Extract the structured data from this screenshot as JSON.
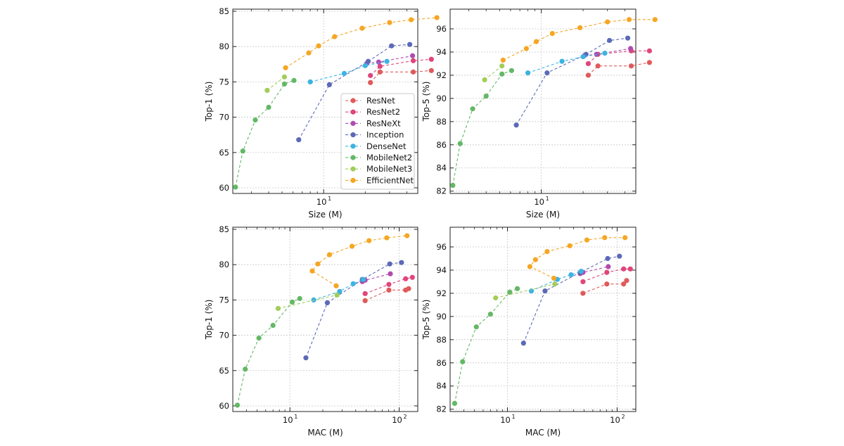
{
  "figure": {
    "legend_entries": [
      "ResNet",
      "ResNet2",
      "ResNeXt",
      "Inception",
      "DenseNet",
      "MobileNet2",
      "MobileNet3",
      "EfficientNet"
    ],
    "colors": {
      "ResNet": "#e05a5a",
      "ResNet2": "#e0457c",
      "ResNeXt": "#b04bb0",
      "Inception": "#5c69b8",
      "DenseNet": "#3cb3e2",
      "MobileNet2": "#63b866",
      "MobileNet3": "#a2cd5a",
      "EfficientNet": "#f5a623"
    }
  },
  "chart_data": [
    {
      "type": "line",
      "xlabel": "Size (M)",
      "ylabel": "Top-1 (%)",
      "xscale": "log",
      "xlim": [
        2.2,
        48
      ],
      "ylim": [
        59.2,
        85.3
      ],
      "yticks": [
        60,
        65,
        70,
        75,
        80,
        85
      ],
      "xticks": [
        {
          "value": 10,
          "label": "10",
          "exp": "1"
        }
      ],
      "grid": true,
      "legend": "center-right",
      "series": [
        {
          "name": "ResNet",
          "x": [
            21.8,
            25.6,
            44.5,
            60.2
          ],
          "y": [
            74.9,
            76.4,
            76.4,
            76.6
          ]
        },
        {
          "name": "ResNet2",
          "x": [
            21.8,
            25.6,
            44.5,
            60.2
          ],
          "y": [
            75.9,
            77.2,
            78.0,
            78.2
          ]
        },
        {
          "name": "ResNeXt",
          "x": [
            20.5,
            25.0,
            44.0
          ],
          "y": [
            77.6,
            77.8,
            78.7
          ]
        },
        {
          "name": "Inception",
          "x": [
            6.6,
            11.0,
            21.0,
            31.0,
            42.0
          ],
          "y": [
            66.8,
            74.6,
            77.9,
            80.1,
            80.3
          ]
        },
        {
          "name": "DenseNet",
          "x": [
            8.0,
            14.1,
            20.0,
            28.7
          ],
          "y": [
            75.0,
            76.2,
            77.3,
            77.9
          ]
        },
        {
          "name": "MobileNet2",
          "x": [
            2.3,
            2.6,
            3.2,
            4.0,
            5.2,
            6.1
          ],
          "y": [
            60.1,
            65.2,
            69.6,
            71.4,
            74.7,
            75.2
          ]
        },
        {
          "name": "MobileNet3",
          "x": [
            3.9,
            5.2
          ],
          "y": [
            73.8,
            75.7
          ]
        },
        {
          "name": "EfficientNet",
          "x": [
            5.3,
            7.8,
            9.2,
            12.0,
            19.0,
            30.0,
            43.0,
            66.0
          ],
          "y": [
            77.0,
            79.1,
            80.1,
            81.4,
            82.6,
            83.4,
            83.8,
            84.1
          ]
        }
      ]
    },
    {
      "type": "line",
      "xlabel": "Size (M)",
      "ylabel": "Top-5 (%)",
      "xscale": "log",
      "xlim": [
        2.2,
        48
      ],
      "ylim": [
        81.8,
        97.7
      ],
      "yticks": [
        82,
        84,
        86,
        88,
        90,
        92,
        94,
        96
      ],
      "xticks": [
        {
          "value": 10,
          "label": "10",
          "exp": "1"
        }
      ],
      "grid": true,
      "legend": "none",
      "series": [
        {
          "name": "ResNet",
          "x": [
            21.8,
            25.6,
            44.5,
            60.2
          ],
          "y": [
            92.0,
            92.8,
            92.8,
            93.1
          ]
        },
        {
          "name": "ResNet2",
          "x": [
            21.8,
            25.6,
            44.5,
            60.2
          ],
          "y": [
            93.0,
            93.8,
            94.1,
            94.1
          ]
        },
        {
          "name": "ResNeXt",
          "x": [
            20.5,
            25.0,
            44.0
          ],
          "y": [
            93.7,
            93.8,
            94.3
          ]
        },
        {
          "name": "Inception",
          "x": [
            6.6,
            11.0,
            21.0,
            31.0,
            42.0
          ],
          "y": [
            87.7,
            92.2,
            93.8,
            95.0,
            95.2
          ]
        },
        {
          "name": "DenseNet",
          "x": [
            8.0,
            14.1,
            20.0,
            28.7
          ],
          "y": [
            92.2,
            93.2,
            93.6,
            93.9
          ]
        },
        {
          "name": "MobileNet2",
          "x": [
            2.3,
            2.6,
            3.2,
            4.0,
            5.2,
            6.1
          ],
          "y": [
            82.5,
            86.1,
            89.1,
            90.2,
            92.1,
            92.4
          ]
        },
        {
          "name": "MobileNet3",
          "x": [
            3.9,
            5.2
          ],
          "y": [
            91.6,
            92.8
          ]
        },
        {
          "name": "EfficientNet",
          "x": [
            5.3,
            7.8,
            9.2,
            12.0,
            19.0,
            30.0,
            43.0,
            66.0
          ],
          "y": [
            93.3,
            94.3,
            94.9,
            95.6,
            96.1,
            96.6,
            96.8,
            96.8
          ]
        }
      ]
    },
    {
      "type": "line",
      "xlabel": "MAC (M)",
      "ylabel": "Top-1 (%)",
      "xscale": "log",
      "xlim": [
        3.0,
        148
      ],
      "ylim": [
        59.2,
        85.3
      ],
      "yticks": [
        60,
        65,
        70,
        75,
        80,
        85
      ],
      "xticks": [
        {
          "value": 10,
          "label": "10",
          "exp": "1"
        },
        {
          "value": 100,
          "label": "10",
          "exp": "2"
        }
      ],
      "grid": true,
      "legend": "none",
      "series": [
        {
          "name": "ResNet",
          "x": [
            48.8,
            80.5,
            114.6,
            122.0
          ],
          "y": [
            74.9,
            76.4,
            76.4,
            76.6
          ]
        },
        {
          "name": "ResNet2",
          "x": [
            48.8,
            80.5,
            114.6,
            132.0
          ],
          "y": [
            75.9,
            77.2,
            78.0,
            78.2
          ]
        },
        {
          "name": "ResNeXt",
          "x": [
            46.0,
            48.8,
            83.0
          ],
          "y": [
            77.6,
            77.8,
            78.7
          ]
        },
        {
          "name": "Inception",
          "x": [
            14.0,
            22.0,
            46.0,
            82.0,
            105.0
          ],
          "y": [
            66.8,
            74.6,
            77.9,
            80.1,
            80.3
          ]
        },
        {
          "name": "DenseNet",
          "x": [
            16.5,
            28.5,
            38.0,
            47.0
          ],
          "y": [
            75.0,
            76.2,
            77.3,
            77.9
          ]
        },
        {
          "name": "MobileNet2",
          "x": [
            3.3,
            3.9,
            5.2,
            7.0,
            10.5,
            12.3
          ],
          "y": [
            60.1,
            65.2,
            69.6,
            71.4,
            74.7,
            75.2
          ]
        },
        {
          "name": "MobileNet3",
          "x": [
            7.8,
            27.0
          ],
          "y": [
            73.8,
            75.7
          ]
        },
        {
          "name": "EfficientNet",
          "x": [
            26.5,
            16.0,
            18.0,
            23.0,
            37.0,
            53.0,
            77.0,
            118.0
          ],
          "y": [
            77.0,
            79.1,
            80.1,
            81.4,
            82.6,
            83.4,
            83.8,
            84.1
          ]
        }
      ]
    },
    {
      "type": "line",
      "xlabel": "MAC (M)",
      "ylabel": "Top-5 (%)",
      "xscale": "log",
      "xlim": [
        3.0,
        148
      ],
      "ylim": [
        81.8,
        97.7
      ],
      "yticks": [
        82,
        84,
        86,
        88,
        90,
        92,
        94,
        96
      ],
      "xticks": [
        {
          "value": 10,
          "label": "10",
          "exp": "1"
        },
        {
          "value": 100,
          "label": "10",
          "exp": "2"
        }
      ],
      "grid": true,
      "legend": "none",
      "series": [
        {
          "name": "ResNet",
          "x": [
            48.8,
            80.5,
            114.6,
            122.0
          ],
          "y": [
            92.0,
            92.8,
            92.8,
            93.1
          ]
        },
        {
          "name": "ResNet2",
          "x": [
            48.8,
            80.5,
            114.6,
            132.0
          ],
          "y": [
            93.0,
            93.8,
            94.1,
            94.1
          ]
        },
        {
          "name": "ResNeXt",
          "x": [
            46.0,
            48.8,
            83.0
          ],
          "y": [
            93.7,
            93.8,
            94.3
          ]
        },
        {
          "name": "Inception",
          "x": [
            14.0,
            22.0,
            46.0,
            82.0,
            105.0
          ],
          "y": [
            87.7,
            92.2,
            93.8,
            95.0,
            95.2
          ]
        },
        {
          "name": "DenseNet",
          "x": [
            16.5,
            28.5,
            38.0,
            47.0
          ],
          "y": [
            92.2,
            93.2,
            93.6,
            93.9
          ]
        },
        {
          "name": "MobileNet2",
          "x": [
            3.3,
            3.9,
            5.2,
            7.0,
            10.5,
            12.3
          ],
          "y": [
            82.5,
            86.1,
            89.1,
            90.2,
            92.1,
            92.4
          ]
        },
        {
          "name": "MobileNet3",
          "x": [
            7.8,
            27.0
          ],
          "y": [
            91.6,
            92.8
          ]
        },
        {
          "name": "EfficientNet",
          "x": [
            26.5,
            16.0,
            18.0,
            23.0,
            37.0,
            53.0,
            77.0,
            118.0
          ],
          "y": [
            93.3,
            94.3,
            94.9,
            95.6,
            96.1,
            96.6,
            96.8,
            96.8
          ]
        }
      ]
    }
  ]
}
